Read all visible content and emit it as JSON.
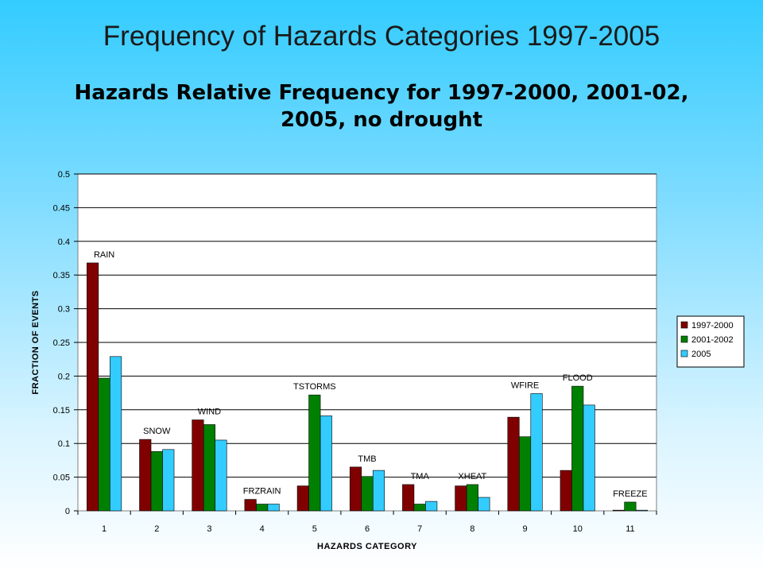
{
  "slide": {
    "title": "Frequency of Hazards Categories 1997-2005"
  },
  "chart_data": {
    "type": "bar",
    "title": "Hazards Relative Frequency for 1997-2000, 2001-02,",
    "title_line2": "2005, no drought",
    "xlabel": "HAZARDS CATEGORY",
    "ylabel": "FRACTION OF EVENTS",
    "ylim": [
      0,
      0.5
    ],
    "yticks": [
      "0",
      "0.05",
      "0.1",
      "0.15",
      "0.2",
      "0.25",
      "0.3",
      "0.35",
      "0.4",
      "0.45",
      "0.5"
    ],
    "categories": [
      "1",
      "2",
      "3",
      "4",
      "5",
      "6",
      "7",
      "8",
      "9",
      "10",
      "11"
    ],
    "series": [
      {
        "name": "1997-2000",
        "color": "#800000",
        "values": [
          0.368,
          0.106,
          0.135,
          0.017,
          0.037,
          0.065,
          0.039,
          0.037,
          0.139,
          0.06,
          0.001
        ]
      },
      {
        "name": "2001-2002",
        "color": "#008000",
        "values": [
          0.197,
          0.088,
          0.128,
          0.01,
          0.172,
          0.051,
          0.01,
          0.039,
          0.11,
          0.185,
          0.013
        ]
      },
      {
        "name": "2005",
        "color": "#33ccff",
        "values": [
          0.229,
          0.091,
          0.105,
          0.01,
          0.141,
          0.06,
          0.014,
          0.02,
          0.174,
          0.157,
          0.001
        ]
      }
    ],
    "annotations": [
      "RAIN",
      "SNOW",
      "WIND",
      "FRZRAIN",
      "TSTORMS",
      "TMB",
      "TMA",
      "XHEAT",
      "WFIRE",
      "FLOOD",
      "FREEZE"
    ],
    "grid": true,
    "legend": "right"
  }
}
